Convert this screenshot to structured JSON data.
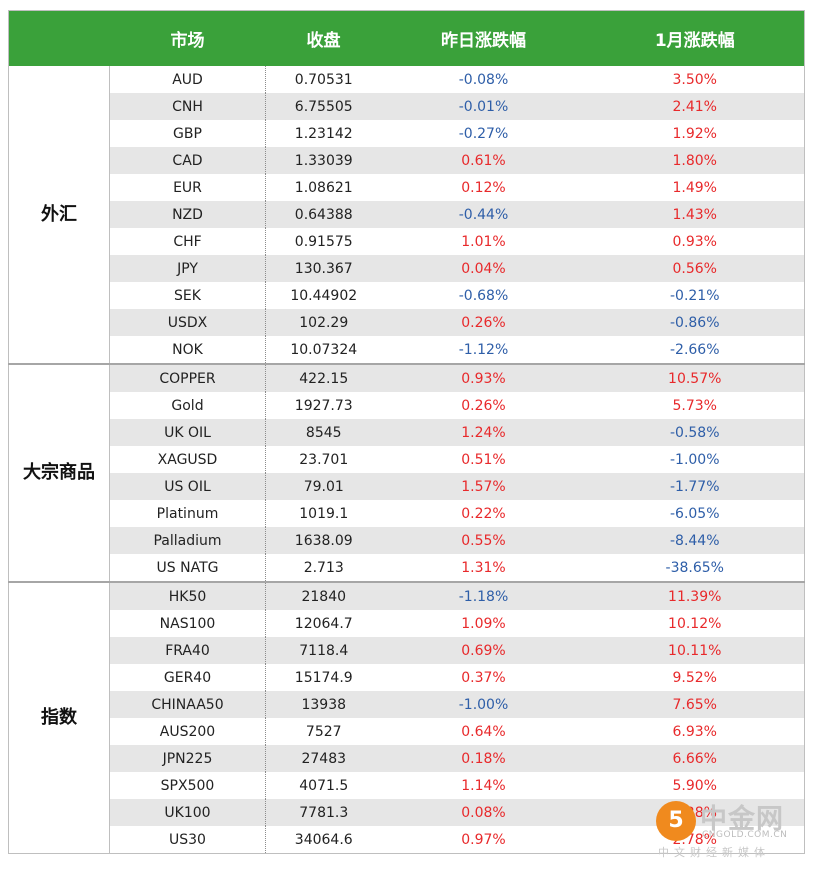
{
  "header": {
    "col_market": "市场",
    "col_close": "收盘",
    "col_yesterday": "昨日涨跌幅",
    "col_january": "1月涨跌幅"
  },
  "groups": [
    {
      "name": "外汇",
      "rows": [
        {
          "symbol": "AUD",
          "close": "0.70531",
          "yesterday": "-0.08%",
          "january": "3.50%"
        },
        {
          "symbol": "CNH",
          "close": "6.75505",
          "yesterday": "-0.01%",
          "january": "2.41%"
        },
        {
          "symbol": "GBP",
          "close": "1.23142",
          "yesterday": "-0.27%",
          "january": "1.92%"
        },
        {
          "symbol": "CAD",
          "close": "1.33039",
          "yesterday": "0.61%",
          "january": "1.80%"
        },
        {
          "symbol": "EUR",
          "close": "1.08621",
          "yesterday": "0.12%",
          "january": "1.49%"
        },
        {
          "symbol": "NZD",
          "close": "0.64388",
          "yesterday": "-0.44%",
          "january": "1.43%"
        },
        {
          "symbol": "CHF",
          "close": "0.91575",
          "yesterday": "1.01%",
          "january": "0.93%"
        },
        {
          "symbol": "JPY",
          "close": "130.367",
          "yesterday": "0.04%",
          "january": "0.56%"
        },
        {
          "symbol": "SEK",
          "close": "10.44902",
          "yesterday": "-0.68%",
          "january": "-0.21%"
        },
        {
          "symbol": "USDX",
          "close": "102.29",
          "yesterday": "0.26%",
          "january": "-0.86%"
        },
        {
          "symbol": "NOK",
          "close": "10.07324",
          "yesterday": "-1.12%",
          "january": "-2.66%"
        }
      ]
    },
    {
      "name": "大宗商品",
      "rows": [
        {
          "symbol": "COPPER",
          "close": "422.15",
          "yesterday": "0.93%",
          "january": "10.57%"
        },
        {
          "symbol": "Gold",
          "close": "1927.73",
          "yesterday": "0.26%",
          "january": "5.73%"
        },
        {
          "symbol": "UK OIL",
          "close": "8545",
          "yesterday": "1.24%",
          "january": "-0.58%"
        },
        {
          "symbol": "XAGUSD",
          "close": "23.701",
          "yesterday": "0.51%",
          "january": "-1.00%"
        },
        {
          "symbol": "US OIL",
          "close": "79.01",
          "yesterday": "1.57%",
          "january": "-1.77%"
        },
        {
          "symbol": "Platinum",
          "close": "1019.1",
          "yesterday": "0.22%",
          "january": "-6.05%"
        },
        {
          "symbol": "Palladium",
          "close": "1638.09",
          "yesterday": "0.55%",
          "january": "-8.44%"
        },
        {
          "symbol": "US NATG",
          "close": "2.713",
          "yesterday": "1.31%",
          "january": "-38.65%"
        }
      ]
    },
    {
      "name": "指数",
      "rows": [
        {
          "symbol": "HK50",
          "close": "21840",
          "yesterday": "-1.18%",
          "january": "11.39%"
        },
        {
          "symbol": "NAS100",
          "close": "12064.7",
          "yesterday": "1.09%",
          "january": "10.12%"
        },
        {
          "symbol": "FRA40",
          "close": "7118.4",
          "yesterday": "0.69%",
          "january": "10.11%"
        },
        {
          "symbol": "GER40",
          "close": "15174.9",
          "yesterday": "0.37%",
          "january": "9.52%"
        },
        {
          "symbol": "CHINAA50",
          "close": "13938",
          "yesterday": "-1.00%",
          "january": "7.65%"
        },
        {
          "symbol": "AUS200",
          "close": "7527",
          "yesterday": "0.64%",
          "january": "6.93%"
        },
        {
          "symbol": "JPN225",
          "close": "27483",
          "yesterday": "0.18%",
          "january": "6.66%"
        },
        {
          "symbol": "SPX500",
          "close": "4071.5",
          "yesterday": "1.14%",
          "january": "5.90%"
        },
        {
          "symbol": "UK100",
          "close": "7781.3",
          "yesterday": "0.08%",
          "january": "4.28%"
        },
        {
          "symbol": "US30",
          "close": "34064.6",
          "yesterday": "0.97%",
          "january": "2.78%"
        }
      ]
    }
  ],
  "colors": {
    "header_bg": "#3aa13a",
    "positive": "#e8292b",
    "negative": "#2e5ea8",
    "alt_row_bg": "#e6e6e6"
  },
  "watermark": {
    "logo_glyph": "5",
    "brand": "中金网",
    "url": "CNGOLD.COM.CN",
    "slogan": "中文财经新媒体"
  }
}
